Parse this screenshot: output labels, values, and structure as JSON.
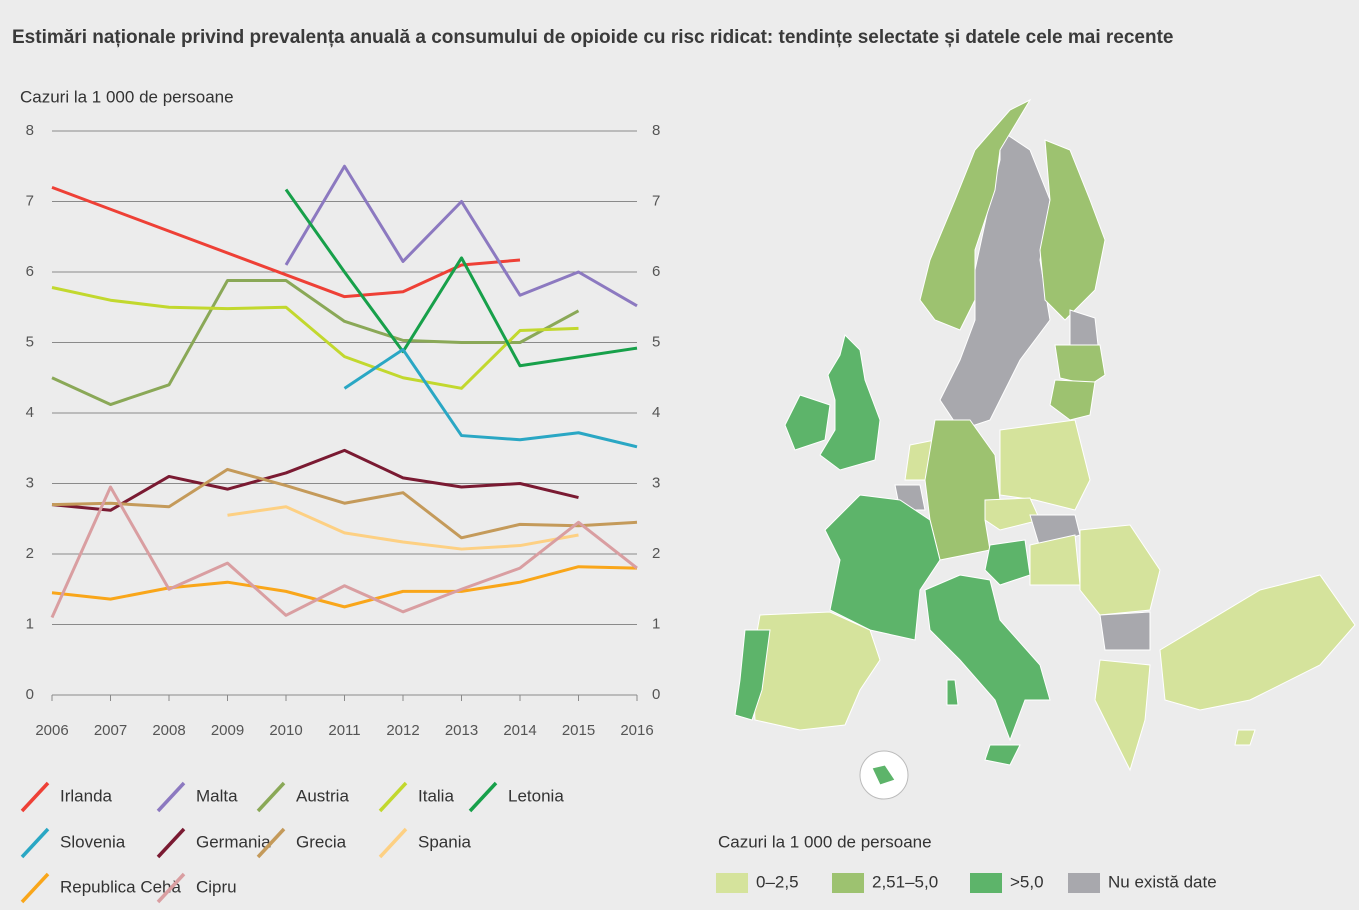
{
  "chart_data": {
    "type": "line",
    "title": "Estimări naționale privind prevalența anuală a consumului de opioide cu risc ridicat: tendințe selectate și datele cele mai recente",
    "ylabel": "Cazuri la 1 000 de persoane",
    "xlim": [
      2006,
      2016
    ],
    "xticks": [
      2006,
      2007,
      2008,
      2009,
      2010,
      2011,
      2012,
      2013,
      2014,
      2015,
      2016
    ],
    "ylim": [
      0,
      8
    ],
    "yticks": [
      0,
      1,
      2,
      3,
      4,
      5,
      6,
      7,
      8
    ],
    "grid": true,
    "series": [
      {
        "name": "Irlanda",
        "color": "#ee4036",
        "x": [
          2006,
          2011,
          2012,
          2013,
          2014
        ],
        "values": [
          7.2,
          5.65,
          5.72,
          6.1,
          6.17
        ]
      },
      {
        "name": "Malta",
        "color": "#8c79c0",
        "x": [
          2010,
          2011,
          2012,
          2013,
          2014,
          2015,
          2016
        ],
        "values": [
          6.1,
          7.5,
          6.15,
          7.0,
          5.67,
          6.0,
          5.52
        ]
      },
      {
        "name": "Austria",
        "color": "#8aa857",
        "x": [
          2006,
          2007,
          2008,
          2009,
          2010,
          2011,
          2012,
          2013,
          2014,
          2015
        ],
        "values": [
          4.5,
          4.12,
          4.4,
          5.88,
          5.88,
          5.3,
          5.03,
          5.0,
          5.0,
          5.45
        ]
      },
      {
        "name": "Italia",
        "color": "#c2d82e",
        "x": [
          2006,
          2007,
          2008,
          2009,
          2010,
          2011,
          2012,
          2013,
          2014,
          2015
        ],
        "values": [
          5.78,
          5.6,
          5.5,
          5.48,
          5.5,
          4.8,
          4.5,
          4.35,
          5.17,
          5.2
        ]
      },
      {
        "name": "Letonia",
        "color": "#17a04a",
        "x": [
          2010,
          2011,
          2012,
          2013,
          2014,
          2016
        ],
        "values": [
          7.17,
          6.0,
          4.87,
          6.2,
          4.67,
          4.92
        ]
      },
      {
        "name": "Slovenia",
        "color": "#2aa7c4",
        "x": [
          2011,
          2012,
          2013,
          2014,
          2015,
          2016
        ],
        "values": [
          4.35,
          4.9,
          3.68,
          3.62,
          3.72,
          3.52
        ]
      },
      {
        "name": "Germania",
        "color": "#7a1a32",
        "x": [
          2006,
          2007,
          2008,
          2009,
          2010,
          2011,
          2012,
          2013,
          2014,
          2015
        ],
        "values": [
          2.7,
          2.62,
          3.1,
          2.92,
          3.15,
          3.47,
          3.08,
          2.95,
          3.0,
          2.8
        ]
      },
      {
        "name": "Grecia",
        "color": "#c49a5a",
        "x": [
          2006,
          2007,
          2008,
          2009,
          2010,
          2011,
          2012,
          2013,
          2014,
          2015,
          2016
        ],
        "values": [
          2.7,
          2.72,
          2.67,
          3.2,
          2.97,
          2.72,
          2.87,
          2.23,
          2.42,
          2.4,
          2.45
        ]
      },
      {
        "name": "Spania",
        "color": "#fdd083",
        "x": [
          2009,
          2010,
          2011,
          2012,
          2013,
          2014,
          2015
        ],
        "values": [
          2.55,
          2.67,
          2.3,
          2.17,
          2.07,
          2.12,
          2.27
        ]
      },
      {
        "name": "Republica Cehă",
        "color": "#f9a61a",
        "x": [
          2006,
          2007,
          2008,
          2009,
          2010,
          2011,
          2012,
          2013,
          2014,
          2015,
          2016
        ],
        "values": [
          1.45,
          1.36,
          1.52,
          1.6,
          1.47,
          1.25,
          1.47,
          1.47,
          1.6,
          1.82,
          1.8
        ]
      },
      {
        "name": "Cipru",
        "color": "#d99ea1",
        "x": [
          2006,
          2007,
          2008,
          2009,
          2010,
          2011,
          2012,
          2013,
          2014,
          2015,
          2016
        ],
        "values": [
          1.1,
          2.95,
          1.5,
          1.87,
          1.13,
          1.55,
          1.18,
          1.5,
          1.8,
          2.45,
          1.8
        ]
      }
    ]
  },
  "map_legend": {
    "title": "Cazuri la 1 000 de persoane",
    "items": [
      {
        "label": "0–2,5",
        "color": "#d5e39c"
      },
      {
        "label": "2,51–5,0",
        "color": "#9dc270"
      },
      {
        "label": ">5,0",
        "color": "#5db46a"
      },
      {
        "label": "Nu există date",
        "color": "#a8a8ad"
      }
    ]
  }
}
